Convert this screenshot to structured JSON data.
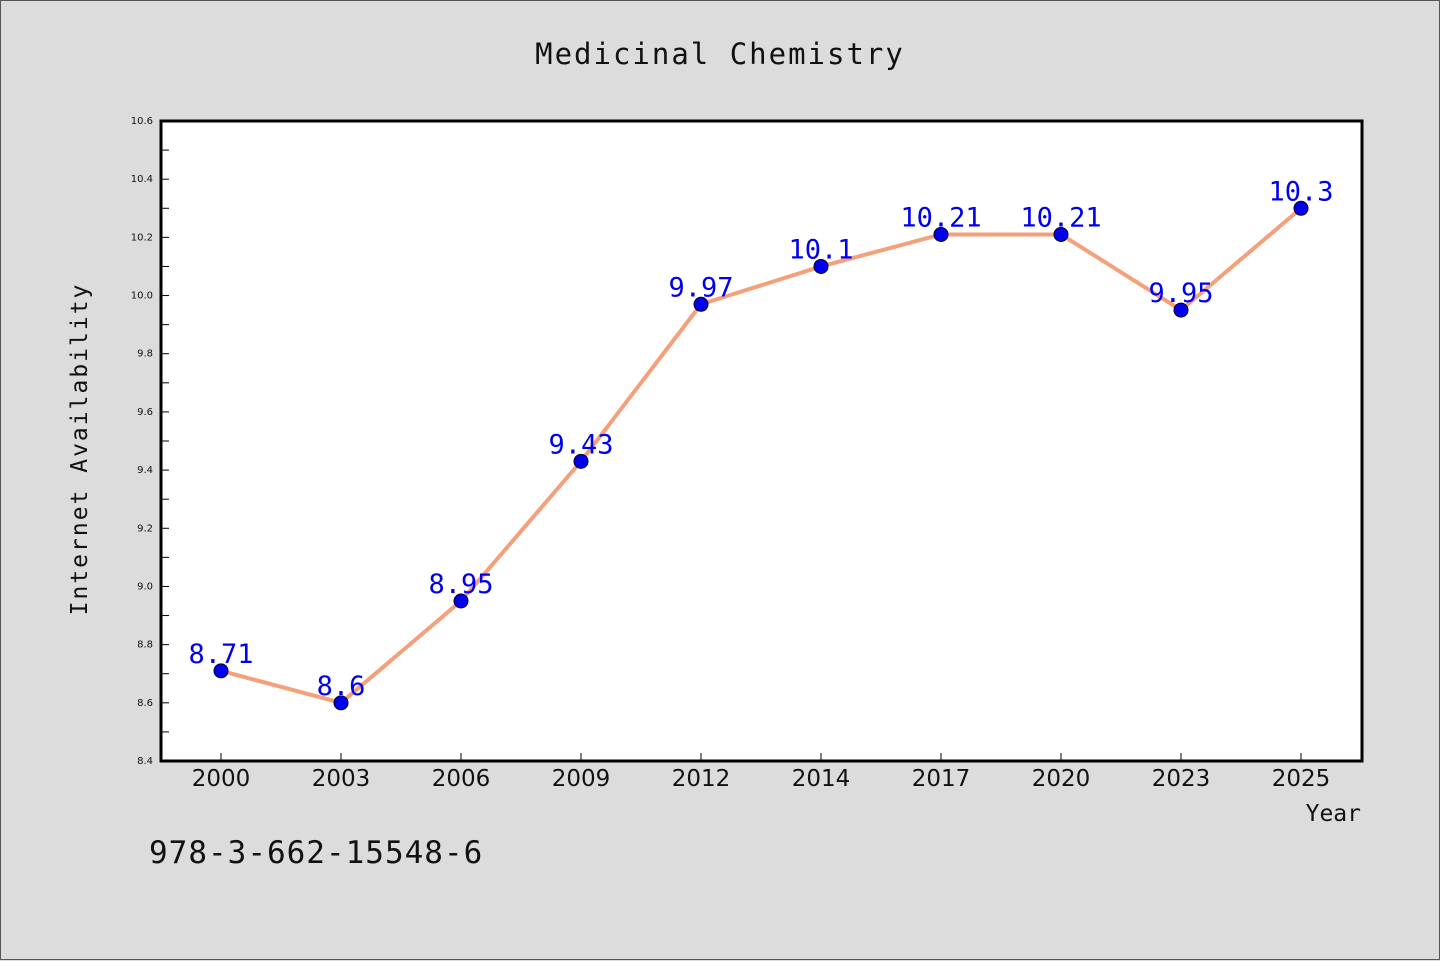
{
  "chart_data": {
    "type": "line",
    "title": "Medicinal Chemistry",
    "xlabel": "Year",
    "ylabel": "Internet Availability",
    "categories": [
      "2000",
      "2003",
      "2006",
      "2009",
      "2012",
      "2014",
      "2017",
      "2020",
      "2023",
      "2025"
    ],
    "series": [
      {
        "values": [
          8.71,
          8.6,
          8.95,
          9.43,
          9.97,
          10.1,
          10.21,
          10.21,
          9.95,
          10.3
        ],
        "labels": [
          "8.71",
          "8.6",
          "8.95",
          "9.43",
          "9.97",
          "10.1",
          "10.21",
          "10.21",
          "9.95",
          "10.3"
        ]
      }
    ],
    "ylim": [
      8.4,
      10.6
    ],
    "yticks": [
      "8.4",
      "8.6",
      "8.8",
      "9.0",
      "9.2",
      "9.4",
      "9.6",
      "9.8",
      "10.0",
      "10.2",
      "10.4",
      "10.6"
    ],
    "grid": false,
    "colors": {
      "line": "#f4a07a",
      "marker": "#0000ee",
      "data_label": "#0000ee",
      "background": "#dcdcdc",
      "plot_background": "#ffffff"
    }
  },
  "annotation": {
    "isbn": "978-3-662-15548-6"
  }
}
